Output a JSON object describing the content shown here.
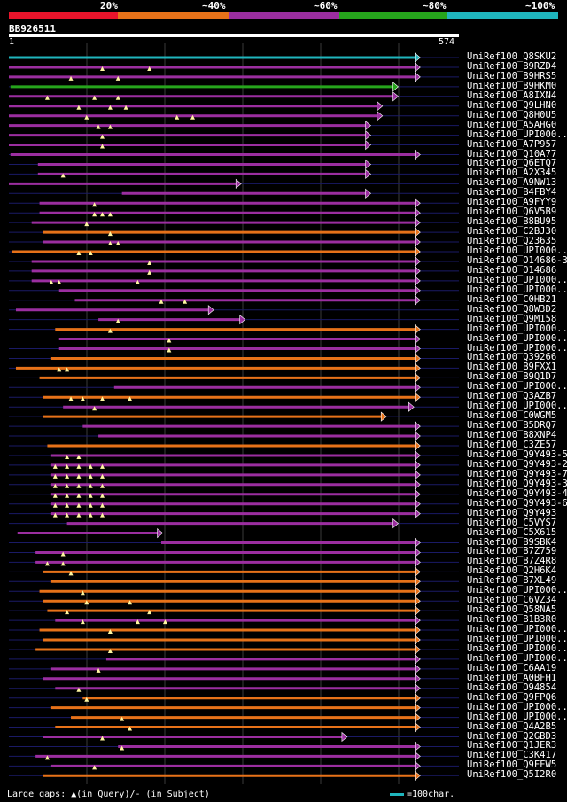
{
  "legend": {
    "labels": [
      "20%",
      "~40%",
      "~60%",
      "~80%",
      "~100%"
    ],
    "colors": [
      "#e8142b",
      "#e77219",
      "#9b2ea0",
      "#26a51c",
      "#1fb5bd"
    ]
  },
  "query": {
    "id": "BB926511",
    "start": "1",
    "end": "574",
    "length": 574
  },
  "footer": {
    "gaps_text": "Large gaps: ▲(in Query)/‐ (in Subject)",
    "scale_text": "=100char."
  },
  "hits": [
    {
      "name": "UniRef100_Q8SKU2",
      "color": "cyan",
      "start": 1,
      "end": 518,
      "tri_color": "cyan",
      "tris": []
    },
    {
      "name": "UniRef100_B9RZD4",
      "color": "purple",
      "start": 1,
      "end": 518,
      "tri_color": "purple",
      "tris": [
        120,
        180
      ]
    },
    {
      "name": "UniRef100_B9HRS5",
      "color": "purple",
      "start": 1,
      "end": 518,
      "tri_color": "purple",
      "tris": [
        80,
        140
      ]
    },
    {
      "name": "UniRef100_B9HKM0",
      "color": "green",
      "start": 3,
      "end": 490,
      "tri_color": "green",
      "tris": []
    },
    {
      "name": "UniRef100_A8IXN4",
      "color": "purple",
      "start": 1,
      "end": 490,
      "tri_color": "purple",
      "tris": [
        50,
        110,
        140
      ]
    },
    {
      "name": "UniRef100_Q9LHN0",
      "color": "purple",
      "start": 1,
      "end": 470,
      "tri_color": "purple",
      "tris": [
        90,
        130,
        150
      ]
    },
    {
      "name": "UniRef100_Q8H0U5",
      "color": "purple",
      "start": 1,
      "end": 470,
      "tri_color": "purple",
      "tris": [
        100,
        215,
        235
      ]
    },
    {
      "name": "UniRef100_A5AHG0",
      "color": "purple",
      "start": 1,
      "end": 455,
      "tri_color": "purple",
      "tris": [
        115,
        130
      ]
    },
    {
      "name": "UniRef100_UPI000..",
      "color": "purple",
      "start": 1,
      "end": 455,
      "tri_color": "purple",
      "tris": [
        120
      ]
    },
    {
      "name": "UniRef100_A7P957",
      "color": "purple",
      "start": 1,
      "end": 455,
      "tri_color": "purple",
      "tris": [
        120
      ]
    },
    {
      "name": "UniRef100_Q10A77",
      "color": "purple",
      "start": 3,
      "end": 518,
      "tri_color": "purple",
      "tris": []
    },
    {
      "name": "UniRef100_Q6ETQ7",
      "color": "purple",
      "start": 38,
      "end": 455,
      "tri_color": "purple",
      "tris": []
    },
    {
      "name": "UniRef100_A2X345",
      "color": "purple",
      "start": 38,
      "end": 455,
      "tri_color": "purple",
      "tris": [
        70
      ]
    },
    {
      "name": "UniRef100_A9NW13",
      "color": "purple",
      "start": 1,
      "end": 290,
      "tri_color": "purple",
      "tris": []
    },
    {
      "name": "UniRef100_B4FBY4",
      "color": "purple",
      "start": 145,
      "end": 455,
      "tri_color": "purple",
      "tris": []
    },
    {
      "name": "UniRef100_A9FYY9",
      "color": "purple",
      "start": 40,
      "end": 518,
      "tri_color": "purple",
      "tris": [
        110
      ]
    },
    {
      "name": "UniRef100_Q6V5B9",
      "color": "purple",
      "start": 40,
      "end": 518,
      "tri_color": "purple",
      "tris": [
        110,
        120,
        130
      ]
    },
    {
      "name": "UniRef100_B8BU95",
      "color": "purple",
      "start": 30,
      "end": 518,
      "tri_color": "purple",
      "tris": [
        100
      ]
    },
    {
      "name": "UniRef100_C2BJ30",
      "color": "orange",
      "start": 45,
      "end": 518,
      "tri_color": "orange",
      "tris": [
        130
      ]
    },
    {
      "name": "UniRef100_Q23635",
      "color": "purple",
      "start": 45,
      "end": 518,
      "tri_color": "purple",
      "tris": [
        130,
        140
      ]
    },
    {
      "name": "UniRef100_UPI000..",
      "color": "orange",
      "start": 5,
      "end": 518,
      "tri_color": "orange",
      "tris": [
        90,
        105
      ]
    },
    {
      "name": "UniRef100_O14686-3",
      "color": "purple",
      "start": 30,
      "end": 518,
      "tri_color": "purple",
      "tris": [
        180
      ]
    },
    {
      "name": "UniRef100_O14686",
      "color": "purple",
      "start": 30,
      "end": 518,
      "tri_color": "purple",
      "tris": [
        180
      ]
    },
    {
      "name": "UniRef100_UPI000..",
      "color": "purple",
      "start": 30,
      "end": 518,
      "tri_color": "purple",
      "tris": [
        55,
        65,
        165
      ]
    },
    {
      "name": "UniRef100_UPI000..",
      "color": "purple",
      "start": 65,
      "end": 518,
      "tri_color": "purple",
      "tris": []
    },
    {
      "name": "UniRef100_C0HB21",
      "color": "purple",
      "start": 85,
      "end": 518,
      "tri_color": "purple",
      "tris": [
        195,
        225
      ]
    },
    {
      "name": "UniRef100_Q8W3D2",
      "color": "purple",
      "start": 10,
      "end": 255,
      "tri_color": "purple",
      "tris": []
    },
    {
      "name": "UniRef100_Q9M158",
      "color": "purple",
      "start": 115,
      "end": 295,
      "tri_color": "purple",
      "tris": [
        140
      ]
    },
    {
      "name": "UniRef100_UPI000..",
      "color": "orange",
      "start": 60,
      "end": 518,
      "tri_color": "orange",
      "tris": [
        130
      ]
    },
    {
      "name": "UniRef100_UPI000..",
      "color": "purple",
      "start": 65,
      "end": 518,
      "tri_color": "purple",
      "tris": [
        205
      ]
    },
    {
      "name": "UniRef100_UPI000..",
      "color": "purple",
      "start": 65,
      "end": 518,
      "tri_color": "purple",
      "tris": [
        205
      ]
    },
    {
      "name": "UniRef100_Q39266",
      "color": "orange",
      "start": 55,
      "end": 518,
      "tri_color": "orange",
      "tris": []
    },
    {
      "name": "UniRef100_B9FXX1",
      "color": "orange",
      "start": 10,
      "end": 518,
      "tri_color": "orange",
      "tris": [
        65,
        75
      ]
    },
    {
      "name": "UniRef100_B9Q1D7",
      "color": "orange",
      "start": 40,
      "end": 518,
      "tri_color": "orange",
      "tris": []
    },
    {
      "name": "UniRef100_UPI000..",
      "color": "purple",
      "start": 135,
      "end": 518,
      "tri_color": "purple",
      "tris": []
    },
    {
      "name": "UniRef100_Q3AZB7",
      "color": "orange",
      "start": 45,
      "end": 518,
      "tri_color": "orange",
      "tris": [
        80,
        95,
        120,
        155
      ]
    },
    {
      "name": "UniRef100_UPI000..",
      "color": "purple",
      "start": 70,
      "end": 510,
      "tri_color": "purple",
      "tris": [
        110
      ]
    },
    {
      "name": "UniRef100_C0WGM5",
      "color": "orange",
      "start": 45,
      "end": 475,
      "tri_color": "orange",
      "tris": []
    },
    {
      "name": "UniRef100_B5DRQ7",
      "color": "purple",
      "start": 95,
      "end": 518,
      "tri_color": "purple",
      "tris": []
    },
    {
      "name": "UniRef100_B8XNP4",
      "color": "purple",
      "start": 115,
      "end": 518,
      "tri_color": "purple",
      "tris": []
    },
    {
      "name": "UniRef100_C3ZE57",
      "color": "orange",
      "start": 50,
      "end": 518,
      "tri_color": "orange",
      "tris": []
    },
    {
      "name": "UniRef100_Q9Y493-5",
      "color": "purple",
      "start": 55,
      "end": 518,
      "tri_color": "purple",
      "tris": [
        75,
        90
      ]
    },
    {
      "name": "UniRef100_Q9Y493-2",
      "color": "purple",
      "start": 55,
      "end": 518,
      "tri_color": "purple",
      "tris": [
        60,
        75,
        90,
        105,
        120
      ]
    },
    {
      "name": "UniRef100_Q9Y493-7",
      "color": "purple",
      "start": 55,
      "end": 518,
      "tri_color": "purple",
      "tris": [
        60,
        75,
        90,
        105,
        120
      ]
    },
    {
      "name": "UniRef100_Q9Y493-3",
      "color": "purple",
      "start": 55,
      "end": 518,
      "tri_color": "purple",
      "tris": [
        60,
        75,
        90,
        105,
        120
      ]
    },
    {
      "name": "UniRef100_Q9Y493-4",
      "color": "purple",
      "start": 55,
      "end": 518,
      "tri_color": "purple",
      "tris": [
        60,
        75,
        90,
        105,
        120
      ]
    },
    {
      "name": "UniRef100_Q9Y493-6",
      "color": "purple",
      "start": 55,
      "end": 518,
      "tri_color": "purple",
      "tris": [
        60,
        75,
        90,
        105,
        120
      ]
    },
    {
      "name": "UniRef100_Q9Y493",
      "color": "purple",
      "start": 55,
      "end": 518,
      "tri_color": "purple",
      "tris": [
        60,
        75,
        90,
        105,
        120
      ]
    },
    {
      "name": "UniRef100_C5VYS7",
      "color": "purple",
      "start": 75,
      "end": 490,
      "tri_color": "purple",
      "tris": []
    },
    {
      "name": "UniRef100_C5X615",
      "color": "purple",
      "start": 12,
      "end": 190,
      "tri_color": "purple",
      "tris": []
    },
    {
      "name": "UniRef100_B9SBK4",
      "color": "purple",
      "start": 195,
      "end": 518,
      "tri_color": "purple",
      "tris": []
    },
    {
      "name": "UniRef100_B7Z759",
      "color": "purple",
      "start": 35,
      "end": 518,
      "tri_color": "purple",
      "tris": [
        70
      ]
    },
    {
      "name": "UniRef100_B7Z4R8",
      "color": "purple",
      "start": 35,
      "end": 518,
      "tri_color": "purple",
      "tris": [
        50,
        70
      ]
    },
    {
      "name": "UniRef100_Q2H6K4",
      "color": "orange",
      "start": 45,
      "end": 518,
      "tri_color": "orange",
      "tris": [
        80
      ]
    },
    {
      "name": "UniRef100_B7XL49",
      "color": "orange",
      "start": 55,
      "end": 518,
      "tri_color": "orange",
      "tris": []
    },
    {
      "name": "UniRef100_UPI000..",
      "color": "orange",
      "start": 40,
      "end": 518,
      "tri_color": "orange",
      "tris": [
        95
      ]
    },
    {
      "name": "UniRef100_C6VZ34",
      "color": "orange",
      "start": 45,
      "end": 518,
      "tri_color": "orange",
      "tris": [
        100,
        155
      ]
    },
    {
      "name": "UniRef100_Q58NA5",
      "color": "orange",
      "start": 50,
      "end": 518,
      "tri_color": "orange",
      "tris": [
        75,
        180
      ]
    },
    {
      "name": "UniRef100_B1B3R0",
      "color": "purple",
      "start": 60,
      "end": 518,
      "tri_color": "purple",
      "tris": [
        95,
        165,
        200
      ]
    },
    {
      "name": "UniRef100_UPI000..",
      "color": "orange",
      "start": 40,
      "end": 518,
      "tri_color": "orange",
      "tris": [
        130
      ]
    },
    {
      "name": "UniRef100_UPI000..",
      "color": "orange",
      "start": 45,
      "end": 518,
      "tri_color": "orange",
      "tris": []
    },
    {
      "name": "UniRef100_UPI000..",
      "color": "orange",
      "start": 35,
      "end": 518,
      "tri_color": "orange",
      "tris": [
        130
      ]
    },
    {
      "name": "UniRef100_UPI000..",
      "color": "purple",
      "start": 125,
      "end": 518,
      "tri_color": "purple",
      "tris": []
    },
    {
      "name": "UniRef100_C6AA19",
      "color": "purple",
      "start": 55,
      "end": 518,
      "tri_color": "purple",
      "tris": [
        115
      ]
    },
    {
      "name": "UniRef100_A0BFH1",
      "color": "purple",
      "start": 45,
      "end": 518,
      "tri_color": "purple",
      "tris": []
    },
    {
      "name": "UniRef100_O94854",
      "color": "purple",
      "start": 60,
      "end": 518,
      "tri_color": "purple",
      "tris": [
        90
      ]
    },
    {
      "name": "UniRef100_Q9FPQ6",
      "color": "orange",
      "start": 95,
      "end": 518,
      "tri_color": "orange",
      "tris": [
        100
      ]
    },
    {
      "name": "UniRef100_UPI000..",
      "color": "orange",
      "start": 55,
      "end": 518,
      "tri_color": "orange",
      "tris": []
    },
    {
      "name": "UniRef100_UPI000..",
      "color": "orange",
      "start": 80,
      "end": 518,
      "tri_color": "orange",
      "tris": [
        145
      ]
    },
    {
      "name": "UniRef100_Q4A2B5",
      "color": "orange",
      "start": 60,
      "end": 518,
      "tri_color": "orange",
      "tris": [
        155
      ]
    },
    {
      "name": "UniRef100_Q2GBD3",
      "color": "purple",
      "start": 45,
      "end": 425,
      "tri_color": "purple",
      "tris": [
        120
      ]
    },
    {
      "name": "UniRef100_Q1JER3",
      "color": "purple",
      "start": 140,
      "end": 518,
      "tri_color": "purple",
      "tris": [
        145
      ]
    },
    {
      "name": "UniRef100_C3K417",
      "color": "purple",
      "start": 35,
      "end": 518,
      "tri_color": "purple",
      "tris": [
        50
      ]
    },
    {
      "name": "UniRef100_Q9FFW5",
      "color": "purple",
      "start": 55,
      "end": 518,
      "tri_color": "purple",
      "tris": [
        110
      ]
    },
    {
      "name": "UniRef100_Q5I2R0",
      "color": "orange",
      "start": 45,
      "end": 518,
      "tri_color": "orange",
      "tris": []
    }
  ]
}
